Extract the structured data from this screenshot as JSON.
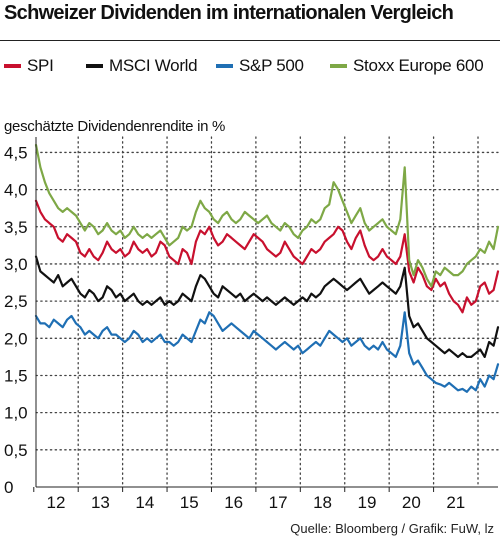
{
  "chart_data": {
    "type": "line",
    "title": "Schweizer Dividenden im internationalen Vergleich",
    "ylabel": "geschätzte Dividendenrendite in %",
    "xlabel": "",
    "source": "Quelle: Bloomberg / Grafik: FuW, lz",
    "xlim": [
      2011.55,
      2021.95
    ],
    "ylim": [
      0,
      4.6
    ],
    "y_ticks": [
      {
        "value": 0,
        "label": "0"
      },
      {
        "value": 0.5,
        "label": "0,5"
      },
      {
        "value": 1.0,
        "label": "1,0"
      },
      {
        "value": 1.5,
        "label": "1,5"
      },
      {
        "value": 2.0,
        "label": "2,0"
      },
      {
        "value": 2.5,
        "label": "2,5"
      },
      {
        "value": 3.0,
        "label": "3,0"
      },
      {
        "value": 3.5,
        "label": "3,5"
      },
      {
        "value": 4.0,
        "label": "4,0"
      },
      {
        "value": 4.5,
        "label": "4,5"
      }
    ],
    "x_ticks": [
      {
        "value": 2012,
        "label": "12"
      },
      {
        "value": 2013,
        "label": "13"
      },
      {
        "value": 2014,
        "label": "14"
      },
      {
        "value": 2015,
        "label": "15"
      },
      {
        "value": 2016,
        "label": "16"
      },
      {
        "value": 2017,
        "label": "17"
      },
      {
        "value": 2018,
        "label": "18"
      },
      {
        "value": 2019,
        "label": "19"
      },
      {
        "value": 2020,
        "label": "20"
      },
      {
        "value": 2021,
        "label": "21"
      }
    ],
    "grid": true,
    "legend_position": "top",
    "series": [
      {
        "name": "SPI",
        "color": "#c8102e",
        "x": [
          2011.55,
          2011.65,
          2011.75,
          2011.85,
          2011.95,
          2012.05,
          2012.15,
          2012.25,
          2012.35,
          2012.45,
          2012.55,
          2012.65,
          2012.75,
          2012.85,
          2012.95,
          2013.05,
          2013.15,
          2013.25,
          2013.35,
          2013.45,
          2013.55,
          2013.65,
          2013.75,
          2013.85,
          2013.95,
          2014.05,
          2014.15,
          2014.25,
          2014.35,
          2014.45,
          2014.55,
          2014.65,
          2014.75,
          2014.85,
          2014.95,
          2015.05,
          2015.15,
          2015.25,
          2015.35,
          2015.45,
          2015.55,
          2015.65,
          2015.75,
          2015.85,
          2015.95,
          2016.05,
          2016.15,
          2016.25,
          2016.35,
          2016.45,
          2016.55,
          2016.65,
          2016.75,
          2016.85,
          2016.95,
          2017.05,
          2017.15,
          2017.25,
          2017.35,
          2017.45,
          2017.55,
          2017.65,
          2017.75,
          2017.85,
          2017.95,
          2018.05,
          2018.15,
          2018.25,
          2018.35,
          2018.45,
          2018.55,
          2018.65,
          2018.75,
          2018.85,
          2018.95,
          2019.05,
          2019.15,
          2019.25,
          2019.35,
          2019.45,
          2019.55,
          2019.65,
          2019.75,
          2019.85,
          2019.95,
          2020.05,
          2020.15,
          2020.25,
          2020.35,
          2020.45,
          2020.55,
          2020.65,
          2020.75,
          2020.85,
          2020.95,
          2021.05,
          2021.15,
          2021.25,
          2021.35,
          2021.45,
          2021.55,
          2021.65,
          2021.75,
          2021.85,
          2021.95
        ],
        "values": [
          3.85,
          3.7,
          3.6,
          3.55,
          3.5,
          3.35,
          3.3,
          3.4,
          3.35,
          3.3,
          3.15,
          3.1,
          3.2,
          3.1,
          3.05,
          3.15,
          3.3,
          3.2,
          3.15,
          3.2,
          3.1,
          3.15,
          3.3,
          3.2,
          3.15,
          3.2,
          3.1,
          3.15,
          3.3,
          3.25,
          3.1,
          3.05,
          3.0,
          3.2,
          3.15,
          3.0,
          3.3,
          3.45,
          3.4,
          3.5,
          3.35,
          3.25,
          3.3,
          3.4,
          3.35,
          3.3,
          3.25,
          3.2,
          3.3,
          3.4,
          3.35,
          3.3,
          3.2,
          3.15,
          3.1,
          3.15,
          3.3,
          3.2,
          3.1,
          3.05,
          3.0,
          3.1,
          3.2,
          3.15,
          3.2,
          3.3,
          3.35,
          3.4,
          3.5,
          3.45,
          3.3,
          3.2,
          3.35,
          3.45,
          3.25,
          3.1,
          3.05,
          3.1,
          3.2,
          3.1,
          3.05,
          3.0,
          3.1,
          3.4,
          2.9,
          2.75,
          2.95,
          2.85,
          2.7,
          2.65,
          2.8,
          2.7,
          2.75,
          2.6,
          2.5,
          2.45,
          2.35,
          2.55,
          2.45,
          2.5,
          2.7,
          2.75,
          2.6,
          2.65,
          2.9
        ]
      },
      {
        "name": "MSCI World",
        "color": "#111111",
        "x": [
          2011.55,
          2011.65,
          2011.75,
          2011.85,
          2011.95,
          2012.05,
          2012.15,
          2012.25,
          2012.35,
          2012.45,
          2012.55,
          2012.65,
          2012.75,
          2012.85,
          2012.95,
          2013.05,
          2013.15,
          2013.25,
          2013.35,
          2013.45,
          2013.55,
          2013.65,
          2013.75,
          2013.85,
          2013.95,
          2014.05,
          2014.15,
          2014.25,
          2014.35,
          2014.45,
          2014.55,
          2014.65,
          2014.75,
          2014.85,
          2014.95,
          2015.05,
          2015.15,
          2015.25,
          2015.35,
          2015.45,
          2015.55,
          2015.65,
          2015.75,
          2015.85,
          2015.95,
          2016.05,
          2016.15,
          2016.25,
          2016.35,
          2016.45,
          2016.55,
          2016.65,
          2016.75,
          2016.85,
          2016.95,
          2017.05,
          2017.15,
          2017.25,
          2017.35,
          2017.45,
          2017.55,
          2017.65,
          2017.75,
          2017.85,
          2017.95,
          2018.05,
          2018.15,
          2018.25,
          2018.35,
          2018.45,
          2018.55,
          2018.65,
          2018.75,
          2018.85,
          2018.95,
          2019.05,
          2019.15,
          2019.25,
          2019.35,
          2019.45,
          2019.55,
          2019.65,
          2019.75,
          2019.85,
          2019.95,
          2020.05,
          2020.15,
          2020.25,
          2020.35,
          2020.45,
          2020.55,
          2020.65,
          2020.75,
          2020.85,
          2020.95,
          2021.05,
          2021.15,
          2021.25,
          2021.35,
          2021.45,
          2021.55,
          2021.65,
          2021.75,
          2021.85,
          2021.95
        ],
        "values": [
          3.1,
          2.9,
          2.85,
          2.8,
          2.75,
          2.85,
          2.7,
          2.75,
          2.8,
          2.7,
          2.6,
          2.55,
          2.65,
          2.6,
          2.5,
          2.55,
          2.7,
          2.65,
          2.55,
          2.6,
          2.5,
          2.55,
          2.6,
          2.5,
          2.45,
          2.5,
          2.45,
          2.5,
          2.55,
          2.45,
          2.5,
          2.45,
          2.5,
          2.6,
          2.55,
          2.5,
          2.7,
          2.85,
          2.8,
          2.7,
          2.6,
          2.55,
          2.7,
          2.65,
          2.6,
          2.55,
          2.6,
          2.5,
          2.55,
          2.6,
          2.55,
          2.5,
          2.55,
          2.5,
          2.45,
          2.5,
          2.55,
          2.5,
          2.45,
          2.5,
          2.55,
          2.5,
          2.6,
          2.55,
          2.6,
          2.7,
          2.75,
          2.8,
          2.75,
          2.7,
          2.65,
          2.7,
          2.75,
          2.8,
          2.7,
          2.6,
          2.65,
          2.7,
          2.75,
          2.7,
          2.65,
          2.6,
          2.7,
          2.95,
          2.3,
          2.15,
          2.2,
          2.1,
          2.0,
          1.95,
          1.9,
          1.85,
          1.8,
          1.85,
          1.8,
          1.75,
          1.8,
          1.75,
          1.75,
          1.8,
          1.85,
          1.75,
          1.95,
          1.9,
          2.15
        ]
      },
      {
        "name": "S&P 500",
        "color": "#1f6fb4",
        "x": [
          2011.55,
          2011.65,
          2011.75,
          2011.85,
          2011.95,
          2012.05,
          2012.15,
          2012.25,
          2012.35,
          2012.45,
          2012.55,
          2012.65,
          2012.75,
          2012.85,
          2012.95,
          2013.05,
          2013.15,
          2013.25,
          2013.35,
          2013.45,
          2013.55,
          2013.65,
          2013.75,
          2013.85,
          2013.95,
          2014.05,
          2014.15,
          2014.25,
          2014.35,
          2014.45,
          2014.55,
          2014.65,
          2014.75,
          2014.85,
          2014.95,
          2015.05,
          2015.15,
          2015.25,
          2015.35,
          2015.45,
          2015.55,
          2015.65,
          2015.75,
          2015.85,
          2015.95,
          2016.05,
          2016.15,
          2016.25,
          2016.35,
          2016.45,
          2016.55,
          2016.65,
          2016.75,
          2016.85,
          2016.95,
          2017.05,
          2017.15,
          2017.25,
          2017.35,
          2017.45,
          2017.55,
          2017.65,
          2017.75,
          2017.85,
          2017.95,
          2018.05,
          2018.15,
          2018.25,
          2018.35,
          2018.45,
          2018.55,
          2018.65,
          2018.75,
          2018.85,
          2018.95,
          2019.05,
          2019.15,
          2019.25,
          2019.35,
          2019.45,
          2019.55,
          2019.65,
          2019.75,
          2019.85,
          2019.95,
          2020.05,
          2020.15,
          2020.25,
          2020.35,
          2020.45,
          2020.55,
          2020.65,
          2020.75,
          2020.85,
          2020.95,
          2021.05,
          2021.15,
          2021.25,
          2021.35,
          2021.45,
          2021.55,
          2021.65,
          2021.75,
          2021.85,
          2021.95
        ],
        "values": [
          2.3,
          2.2,
          2.2,
          2.15,
          2.25,
          2.2,
          2.15,
          2.25,
          2.3,
          2.2,
          2.15,
          2.05,
          2.1,
          2.05,
          2.0,
          2.1,
          2.15,
          2.05,
          2.05,
          2.0,
          1.95,
          2.0,
          2.1,
          2.05,
          1.95,
          2.0,
          1.95,
          2.0,
          2.05,
          1.95,
          1.95,
          1.9,
          1.95,
          2.05,
          2.0,
          1.95,
          2.1,
          2.25,
          2.2,
          2.35,
          2.3,
          2.2,
          2.1,
          2.15,
          2.2,
          2.15,
          2.1,
          2.05,
          2.0,
          2.1,
          2.05,
          2.0,
          1.95,
          1.9,
          1.85,
          1.9,
          1.95,
          1.9,
          1.85,
          1.9,
          1.8,
          1.85,
          1.9,
          1.95,
          1.9,
          2.0,
          2.1,
          2.05,
          2.0,
          1.95,
          2.0,
          1.9,
          1.95,
          2.0,
          1.9,
          1.85,
          1.9,
          1.85,
          1.95,
          1.85,
          1.8,
          1.75,
          1.9,
          2.35,
          1.8,
          1.65,
          1.7,
          1.6,
          1.5,
          1.45,
          1.4,
          1.38,
          1.35,
          1.4,
          1.35,
          1.3,
          1.32,
          1.28,
          1.35,
          1.3,
          1.45,
          1.35,
          1.5,
          1.45,
          1.65
        ]
      },
      {
        "name": "Stoxx Europe 600",
        "color": "#7ea846",
        "x": [
          2011.55,
          2011.65,
          2011.75,
          2011.85,
          2011.95,
          2012.05,
          2012.15,
          2012.25,
          2012.35,
          2012.45,
          2012.55,
          2012.65,
          2012.75,
          2012.85,
          2012.95,
          2013.05,
          2013.15,
          2013.25,
          2013.35,
          2013.45,
          2013.55,
          2013.65,
          2013.75,
          2013.85,
          2013.95,
          2014.05,
          2014.15,
          2014.25,
          2014.35,
          2014.45,
          2014.55,
          2014.65,
          2014.75,
          2014.85,
          2014.95,
          2015.05,
          2015.15,
          2015.25,
          2015.35,
          2015.45,
          2015.55,
          2015.65,
          2015.75,
          2015.85,
          2015.95,
          2016.05,
          2016.15,
          2016.25,
          2016.35,
          2016.45,
          2016.55,
          2016.65,
          2016.75,
          2016.85,
          2016.95,
          2017.05,
          2017.15,
          2017.25,
          2017.35,
          2017.45,
          2017.55,
          2017.65,
          2017.75,
          2017.85,
          2017.95,
          2018.05,
          2018.15,
          2018.25,
          2018.35,
          2018.45,
          2018.55,
          2018.65,
          2018.75,
          2018.85,
          2018.95,
          2019.05,
          2019.15,
          2019.25,
          2019.35,
          2019.45,
          2019.55,
          2019.65,
          2019.75,
          2019.85,
          2019.95,
          2020.05,
          2020.15,
          2020.25,
          2020.35,
          2020.45,
          2020.55,
          2020.65,
          2020.75,
          2020.85,
          2020.95,
          2021.05,
          2021.15,
          2021.25,
          2021.35,
          2021.45,
          2021.55,
          2021.65,
          2021.75,
          2021.85,
          2021.95
        ],
        "values": [
          4.6,
          4.3,
          4.1,
          3.95,
          3.85,
          3.75,
          3.7,
          3.75,
          3.7,
          3.65,
          3.55,
          3.45,
          3.55,
          3.5,
          3.4,
          3.45,
          3.55,
          3.45,
          3.4,
          3.45,
          3.35,
          3.4,
          3.5,
          3.4,
          3.35,
          3.4,
          3.35,
          3.4,
          3.45,
          3.35,
          3.25,
          3.3,
          3.35,
          3.5,
          3.45,
          3.5,
          3.7,
          3.85,
          3.75,
          3.7,
          3.6,
          3.55,
          3.65,
          3.7,
          3.6,
          3.55,
          3.6,
          3.7,
          3.65,
          3.6,
          3.55,
          3.6,
          3.65,
          3.55,
          3.5,
          3.45,
          3.55,
          3.5,
          3.4,
          3.35,
          3.45,
          3.5,
          3.6,
          3.55,
          3.6,
          3.75,
          3.8,
          4.1,
          4.0,
          3.85,
          3.7,
          3.55,
          3.65,
          3.75,
          3.55,
          3.45,
          3.5,
          3.55,
          3.6,
          3.5,
          3.45,
          3.4,
          3.6,
          4.3,
          3.05,
          2.85,
          3.05,
          2.95,
          2.8,
          2.7,
          2.9,
          2.85,
          2.95,
          2.9,
          2.85,
          2.85,
          2.9,
          3.0,
          3.05,
          3.1,
          3.2,
          3.15,
          3.3,
          3.2,
          3.5
        ]
      }
    ]
  }
}
